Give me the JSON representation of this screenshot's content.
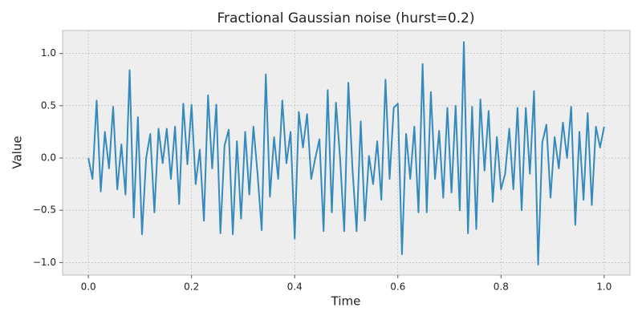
{
  "chart_data": {
    "type": "line",
    "title": "Fractional Gaussian noise (hurst=0.2)",
    "x_label": "Time",
    "y_label": "Value",
    "x": [
      0,
      0.008,
      0.016,
      0.024,
      0.032,
      0.04,
      0.048,
      0.056,
      0.064,
      0.072,
      0.08,
      0.088,
      0.096,
      0.104,
      0.112,
      0.12,
      0.128,
      0.136,
      0.144,
      0.152,
      0.16,
      0.168,
      0.176,
      0.184,
      0.192,
      0.2,
      0.208,
      0.216,
      0.224,
      0.232,
      0.24,
      0.248,
      0.256,
      0.264,
      0.272,
      0.28,
      0.288,
      0.296,
      0.304,
      0.312,
      0.32,
      0.328,
      0.336,
      0.344,
      0.352,
      0.36,
      0.368,
      0.376,
      0.384,
      0.392,
      0.4,
      0.408,
      0.416,
      0.424,
      0.432,
      0.44,
      0.448,
      0.456,
      0.464,
      0.472,
      0.48,
      0.488,
      0.496,
      0.504,
      0.512,
      0.52,
      0.528,
      0.536,
      0.544,
      0.552,
      0.56,
      0.568,
      0.576,
      0.584,
      0.592,
      0.6,
      0.608,
      0.616,
      0.624,
      0.632,
      0.64,
      0.648,
      0.656,
      0.664,
      0.672,
      0.68,
      0.688,
      0.696,
      0.704,
      0.712,
      0.72,
      0.728,
      0.736,
      0.744,
      0.752,
      0.76,
      0.768,
      0.776,
      0.784,
      0.792,
      0.8,
      0.808,
      0.816,
      0.824,
      0.832,
      0.84,
      0.848,
      0.856,
      0.864,
      0.872,
      0.88,
      0.888,
      0.896,
      0.904,
      0.912,
      0.92,
      0.928,
      0.936,
      0.944,
      0.952,
      0.96,
      0.968,
      0.976,
      0.984,
      0.992,
      1.0
    ],
    "series": [
      {
        "color": "#348abd",
        "values": [
          0,
          -0.2,
          0.55,
          -0.32,
          0.25,
          -0.1,
          0.49,
          -0.3,
          0.13,
          -0.35,
          0.84,
          -0.57,
          0.39,
          -0.73,
          0.0,
          0.23,
          -0.52,
          0.28,
          -0.05,
          0.28,
          -0.2,
          0.3,
          -0.44,
          0.52,
          -0.06,
          0.51,
          -0.25,
          0.08,
          -0.6,
          0.6,
          -0.1,
          0.51,
          -0.72,
          0.12,
          0.27,
          -0.73,
          0.16,
          -0.58,
          0.25,
          -0.35,
          0.3,
          -0.15,
          -0.69,
          0.8,
          -0.37,
          0.2,
          -0.2,
          0.55,
          -0.05,
          0.25,
          -0.77,
          0.44,
          0.1,
          0.42,
          -0.2,
          0.0,
          0.18,
          -0.7,
          0.65,
          -0.52,
          0.53,
          0.0,
          -0.7,
          0.72,
          -0.1,
          -0.7,
          0.35,
          -0.6,
          0.02,
          -0.25,
          0.16,
          -0.4,
          0.75,
          -0.2,
          0.48,
          0.52,
          -0.92,
          0.23,
          -0.2,
          0.3,
          -0.52,
          0.9,
          -0.52,
          0.63,
          -0.2,
          0.26,
          -0.38,
          0.48,
          -0.33,
          0.5,
          -0.5,
          1.11,
          -0.72,
          0.49,
          -0.68,
          0.56,
          -0.12,
          0.45,
          -0.42,
          0.2,
          -0.3,
          -0.15,
          0.28,
          -0.3,
          0.48,
          -0.5,
          0.48,
          -0.15,
          0.64,
          -1.02,
          0.15,
          0.32,
          -0.38,
          0.2,
          -0.1,
          0.34,
          0.0,
          0.49,
          -0.64,
          0.25,
          -0.4,
          0.43,
          -0.45,
          0.3,
          0.1,
          0.3
        ]
      }
    ],
    "xlim": [
      -0.05,
      1.05
    ],
    "ylim": [
      -1.12,
      1.22
    ],
    "xticks": [
      {
        "value": 0,
        "label": "0.0"
      },
      0.2,
      0.4,
      0.6,
      0.8,
      {
        "value": 1,
        "label": "1.0"
      }
    ],
    "yticks": [
      {
        "value": -1,
        "label": "−1.0"
      },
      {
        "value": -0.5,
        "label": "−0.5"
      },
      {
        "value": 0,
        "label": "0.0"
      },
      0.5,
      {
        "value": 1,
        "label": "1.0"
      }
    ],
    "grid": true
  }
}
